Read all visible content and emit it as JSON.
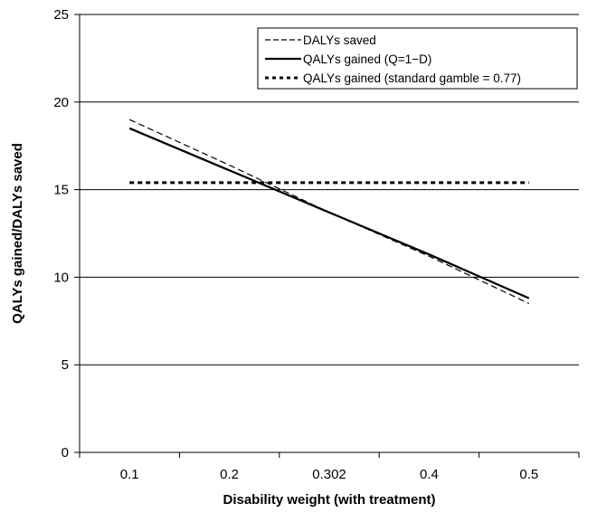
{
  "chart_data": {
    "type": "line",
    "title": "",
    "xlabel": "Disability weight (with treatment)",
    "ylabel": "QALYs gained/DALYs saved",
    "categories": [
      "0.1",
      "0.2",
      "0.302",
      "0.4",
      "0.5"
    ],
    "x": [
      0.1,
      0.2,
      0.302,
      0.4,
      0.5
    ],
    "ylim": [
      0,
      25
    ],
    "yticks": [
      "0",
      "5",
      "10",
      "15",
      "20",
      "25"
    ],
    "grid": "horizontal",
    "legend_position": "top-right",
    "series": [
      {
        "name": "DALYs saved",
        "values": [
          19.0,
          16.4,
          13.7,
          11.2,
          8.5
        ],
        "style": "dashed",
        "color": "#000000"
      },
      {
        "name": "QALYs gained (Q=1−D)",
        "values": [
          18.5,
          16.1,
          13.7,
          11.3,
          8.8
        ],
        "style": "solid",
        "color": "#000000"
      },
      {
        "name": "QALYs gained (standard gamble = 0.77)",
        "values": [
          15.4,
          15.4,
          15.4,
          15.4,
          15.4
        ],
        "style": "dotted",
        "color": "#000000"
      }
    ]
  }
}
